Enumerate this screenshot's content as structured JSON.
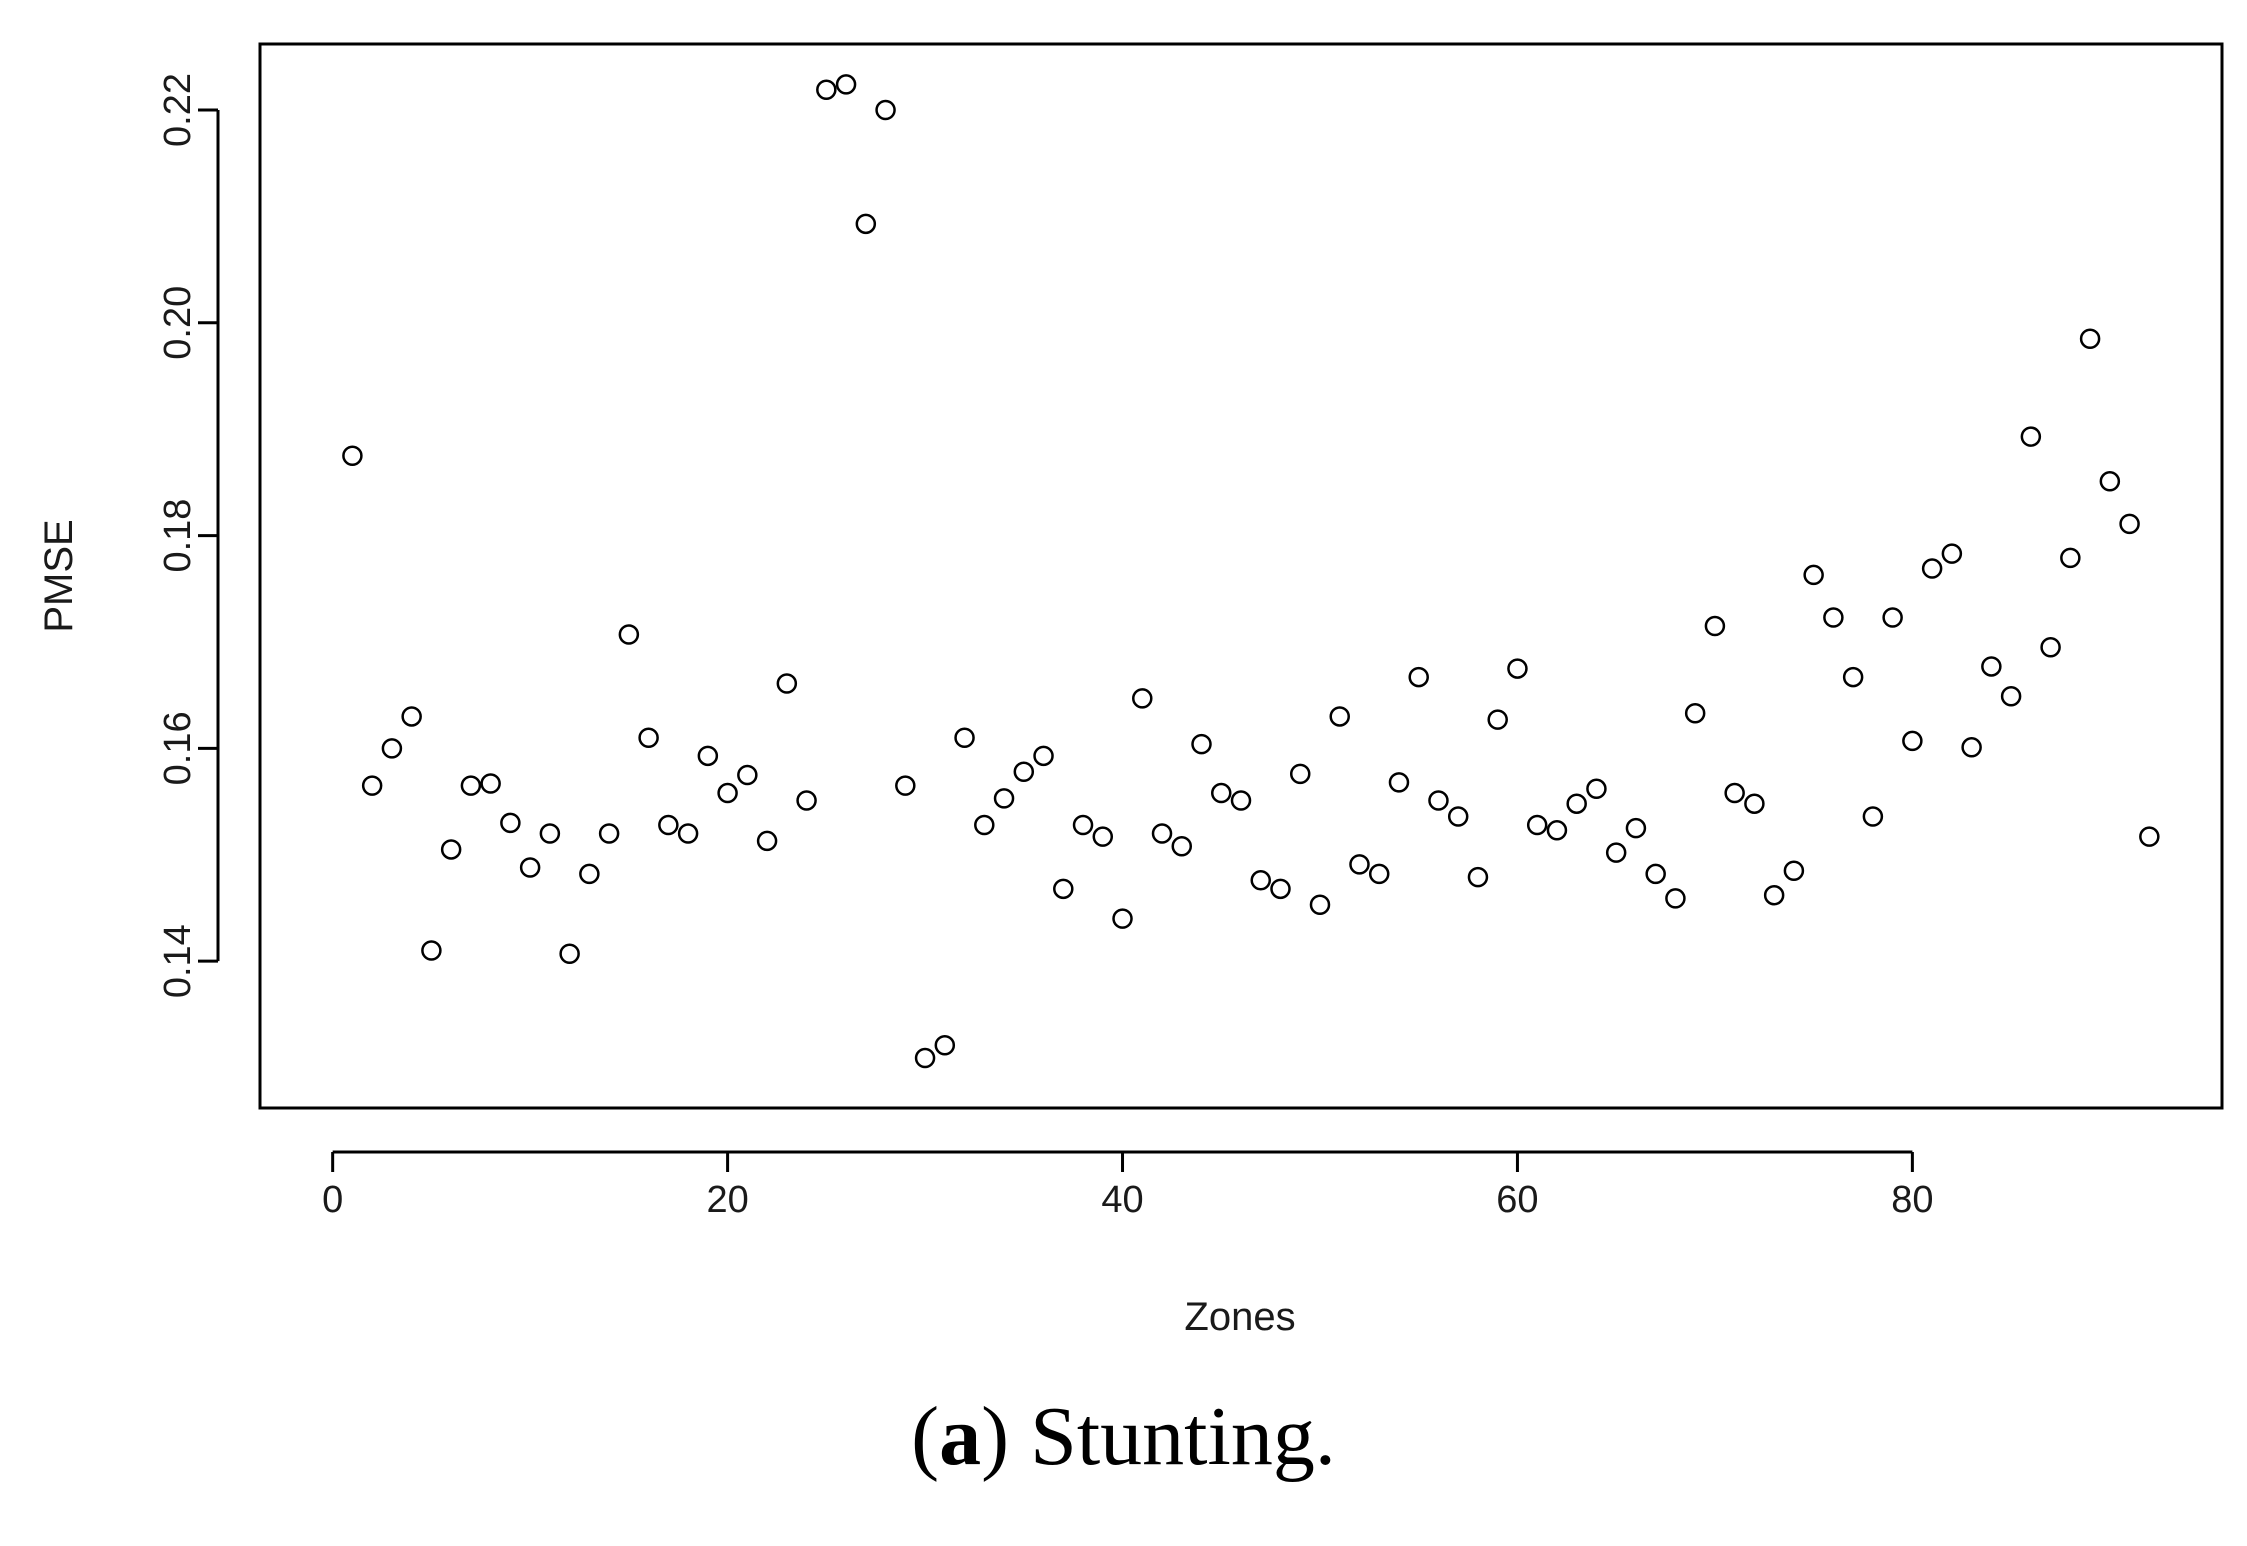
{
  "chart_data": {
    "type": "scatter",
    "title": "",
    "xlabel": "Zones",
    "ylabel": "PMSE",
    "xlim": [
      -3.68,
      95.68
    ],
    "ylim": [
      0.1262,
      0.2262
    ],
    "x_ticks": [
      0,
      20,
      40,
      60,
      80
    ],
    "x_tick_labels": [
      "0",
      "20",
      "40",
      "60",
      "80"
    ],
    "y_ticks": [
      0.14,
      0.16,
      0.18,
      0.2,
      0.22
    ],
    "y_tick_labels": [
      "0.14",
      "0.16",
      "0.18",
      "0.20",
      "0.22"
    ],
    "grid": false,
    "marker": "open-circle",
    "color": "#000000",
    "series": [
      {
        "x": [
          1,
          2,
          3,
          4,
          5,
          6,
          7,
          8,
          9,
          10,
          11,
          12,
          13,
          14,
          15,
          16,
          17,
          18,
          19,
          20,
          21,
          22,
          23,
          24,
          25,
          26,
          27,
          28,
          29,
          30,
          31,
          32,
          33,
          34,
          35,
          36,
          37,
          38,
          39,
          40,
          41,
          42,
          43,
          44,
          45,
          46,
          47,
          48,
          49,
          50,
          51,
          52,
          53,
          54,
          55,
          56,
          57,
          58,
          59,
          60,
          61,
          62,
          63,
          64,
          65,
          66,
          67,
          68,
          69,
          70,
          71,
          72,
          73,
          74,
          75,
          76,
          77,
          78,
          79,
          80,
          81,
          82,
          83,
          84,
          85,
          86,
          87,
          88,
          89,
          90,
          91,
          92
        ],
        "y": [
          0.1875,
          0.1565,
          0.16,
          0.163,
          0.141,
          0.1505,
          0.1565,
          0.1567,
          0.153,
          0.1488,
          0.152,
          0.1407,
          0.1482,
          0.152,
          0.1707,
          0.161,
          0.1528,
          0.152,
          0.1593,
          0.1558,
          0.1575,
          0.1513,
          0.1661,
          0.1551,
          0.2219,
          0.2224,
          0.2093,
          0.22,
          0.1565,
          0.1309,
          0.1321,
          0.161,
          0.1528,
          0.1553,
          0.1578,
          0.1593,
          0.1468,
          0.1528,
          0.1517,
          0.144,
          0.1647,
          0.152,
          0.1508,
          0.1604,
          0.1558,
          0.1551,
          0.1476,
          0.1468,
          0.1576,
          0.1453,
          0.163,
          0.1491,
          0.1482,
          0.1568,
          0.1667,
          0.1551,
          0.1536,
          0.1479,
          0.1627,
          0.1675,
          0.1528,
          0.1523,
          0.1548,
          0.1562,
          0.1502,
          0.1525,
          0.1482,
          0.1459,
          0.1633,
          0.1715,
          0.1558,
          0.1548,
          0.1462,
          0.1485,
          0.1763,
          0.1723,
          0.1667,
          0.1536,
          0.1723,
          0.1607,
          0.1769,
          0.1783,
          0.1601,
          0.1677,
          0.1649,
          0.1893,
          0.1695,
          0.1779,
          0.1985,
          0.1851,
          0.1811,
          0.1517
        ]
      }
    ]
  },
  "caption": {
    "letter": "a",
    "open": "(",
    "close": ")",
    "text": " Stunting."
  }
}
